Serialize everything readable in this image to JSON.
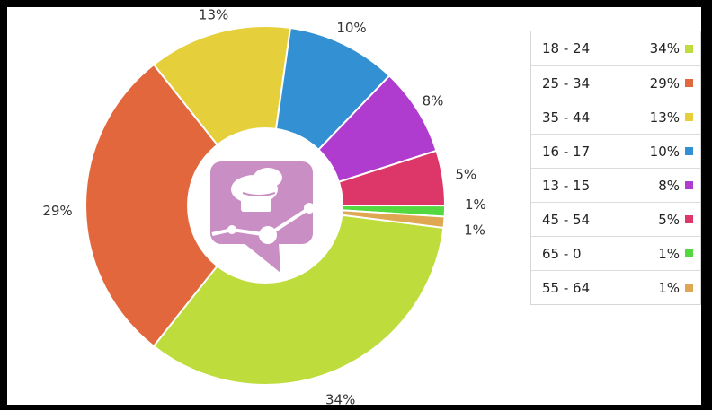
{
  "chart_data": {
    "type": "pie",
    "title": "",
    "categories": [
      "18 - 24",
      "25 - 34",
      "35 - 44",
      "16 - 17",
      "13 - 15",
      "45 - 54",
      "65 - 0",
      "55 - 64"
    ],
    "values": [
      34,
      29,
      13,
      10,
      8,
      5,
      1,
      1
    ],
    "labels": [
      "34%",
      "29%",
      "13%",
      "10%",
      "8%",
      "5%",
      "1%",
      "1%"
    ],
    "colors": [
      "#bedc3c",
      "#e2673d",
      "#e5cf3a",
      "#3391d3",
      "#b03ccf",
      "#dc3768",
      "#53d840",
      "#e0a752"
    ],
    "legend_placement": "right",
    "donut": true,
    "center_icon": "chef-hat-chat-logo-icon"
  }
}
